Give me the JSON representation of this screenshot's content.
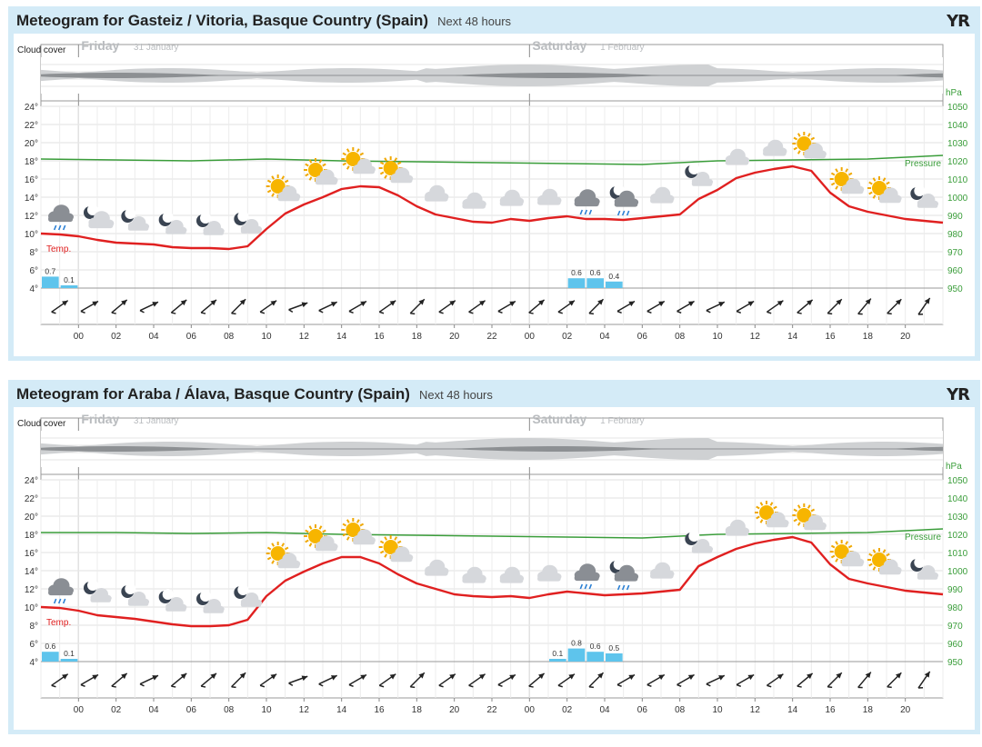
{
  "labels": {
    "cloud_cover": "Cloud cover",
    "temp": "Temp.",
    "pressure": "Pressure",
    "hpa_unit": "hPa",
    "logo": "YR"
  },
  "days": [
    {
      "name": "Friday",
      "date": "31 January",
      "hour_offset": 0
    },
    {
      "name": "Saturday",
      "date": "1 February",
      "hour_offset": 24
    }
  ],
  "panels": [
    {
      "title": "Meteogram for Gasteiz / Vitoria, Basque Country (Spain)",
      "subtitle": "Next 48 hours",
      "chart_data": {
        "type": "line",
        "x_unit": "hour (relative to 00 Friday 31 January)",
        "x_range": [
          -2,
          46
        ],
        "x_tick_labels": [
          "00",
          "02",
          "04",
          "06",
          "08",
          "10",
          "12",
          "14",
          "16",
          "18",
          "20",
          "22",
          "00",
          "02",
          "04",
          "06",
          "08",
          "10",
          "12",
          "14",
          "16",
          "18",
          "20"
        ],
        "y_left": {
          "label": "°",
          "ylim": [
            4,
            24
          ],
          "ticks": [
            4,
            6,
            8,
            10,
            12,
            14,
            16,
            18,
            20,
            22,
            24
          ]
        },
        "y_right": {
          "label": "hPa",
          "ylim": [
            950,
            1050
          ],
          "ticks": [
            950,
            960,
            970,
            980,
            990,
            1000,
            1010,
            1020,
            1030,
            1040,
            1050
          ]
        },
        "grid": true,
        "temperature": {
          "name": "Temp.",
          "color": "#e02020",
          "x": [
            -2,
            -1,
            0,
            1,
            2,
            3,
            4,
            5,
            6,
            7,
            8,
            9,
            10,
            11,
            12,
            13,
            14,
            15,
            16,
            17,
            18,
            19,
            20,
            21,
            22,
            23,
            24,
            25,
            26,
            27,
            28,
            29,
            30,
            31,
            32,
            33,
            34,
            35,
            36,
            37,
            38,
            39,
            40,
            41,
            42,
            43,
            44,
            45,
            46
          ],
          "values": [
            10,
            9.9,
            9.7,
            9.3,
            9.0,
            8.9,
            8.8,
            8.5,
            8.4,
            8.4,
            8.3,
            8.6,
            10.5,
            12.2,
            13.2,
            14.0,
            14.9,
            15.2,
            15.1,
            14.2,
            13.0,
            12.1,
            11.7,
            11.3,
            11.2,
            11.6,
            11.4,
            11.7,
            11.9,
            11.6,
            11.6,
            11.5,
            11.7,
            11.9,
            12.1,
            13.8,
            14.8,
            16.1,
            16.7,
            17.1,
            17.4,
            16.9,
            14.5,
            13.0,
            12.4,
            12.0,
            11.6,
            11.4,
            11.2
          ]
        },
        "pressure": {
          "name": "Pressure",
          "color": "#3a9d3a",
          "x": [
            -2,
            2,
            6,
            10,
            14,
            18,
            22,
            26,
            30,
            34,
            38,
            42,
            46
          ],
          "values": [
            1021,
            1020.5,
            1020,
            1021,
            1020,
            1019.5,
            1019,
            1018.5,
            1018,
            1020,
            1020.5,
            1021,
            1023
          ]
        },
        "precipitation": {
          "unit": "mm",
          "color": "#5ec4ec",
          "bars": [
            {
              "x": -1.5,
              "value": 0.7
            },
            {
              "x": -0.5,
              "value": 0.1
            },
            {
              "x": 26.5,
              "value": 0.6
            },
            {
              "x": 27.5,
              "value": 0.6
            },
            {
              "x": 28.5,
              "value": 0.4
            }
          ]
        },
        "wind_arrows_deg": [
          35,
          30,
          40,
          25,
          40,
          40,
          45,
          35,
          20,
          25,
          30,
          35,
          45,
          35,
          35,
          30,
          40,
          35,
          45,
          30,
          30,
          30,
          25,
          30,
          35,
          40,
          45,
          50,
          45,
          55
        ],
        "weather_symbols": [
          {
            "x": -1,
            "kind": "rain"
          },
          {
            "x": 1,
            "kind": "night-cloud"
          },
          {
            "x": 3,
            "kind": "night-partly"
          },
          {
            "x": 5,
            "kind": "night-partly"
          },
          {
            "x": 7,
            "kind": "night-partly"
          },
          {
            "x": 9,
            "kind": "night-partly"
          },
          {
            "x": 11,
            "kind": "sun-cloud"
          },
          {
            "x": 13,
            "kind": "sun-cloud"
          },
          {
            "x": 15,
            "kind": "sun-cloud"
          },
          {
            "x": 17,
            "kind": "sun-cloud"
          },
          {
            "x": 19,
            "kind": "cloud"
          },
          {
            "x": 21,
            "kind": "cloud"
          },
          {
            "x": 23,
            "kind": "cloud"
          },
          {
            "x": 25,
            "kind": "cloud"
          },
          {
            "x": 27,
            "kind": "rain"
          },
          {
            "x": 29,
            "kind": "night-rain"
          },
          {
            "x": 31,
            "kind": "cloud"
          },
          {
            "x": 33,
            "kind": "night-partly"
          },
          {
            "x": 35,
            "kind": "cloud"
          },
          {
            "x": 37,
            "kind": "cloud"
          },
          {
            "x": 39,
            "kind": "sun-cloud"
          },
          {
            "x": 41,
            "kind": "sun-cloud"
          },
          {
            "x": 43,
            "kind": "sun-cloud"
          },
          {
            "x": 45,
            "kind": "night-partly"
          }
        ]
      }
    },
    {
      "title": "Meteogram for Araba / Álava, Basque Country (Spain)",
      "subtitle": "Next 48 hours",
      "chart_data": {
        "type": "line",
        "x_unit": "hour (relative to 00 Friday 31 January)",
        "x_range": [
          -2,
          46
        ],
        "x_tick_labels": [
          "00",
          "02",
          "04",
          "06",
          "08",
          "10",
          "12",
          "14",
          "16",
          "18",
          "20",
          "22",
          "00",
          "02",
          "04",
          "06",
          "08",
          "10",
          "12",
          "14",
          "16",
          "18",
          "20"
        ],
        "y_left": {
          "label": "°",
          "ylim": [
            4,
            24
          ],
          "ticks": [
            4,
            6,
            8,
            10,
            12,
            14,
            16,
            18,
            20,
            22,
            24
          ]
        },
        "y_right": {
          "label": "hPa",
          "ylim": [
            950,
            1050
          ],
          "ticks": [
            950,
            960,
            970,
            980,
            990,
            1000,
            1010,
            1020,
            1030,
            1040,
            1050
          ]
        },
        "grid": true,
        "temperature": {
          "name": "Temp.",
          "color": "#e02020",
          "x": [
            -2,
            -1,
            0,
            1,
            2,
            3,
            4,
            5,
            6,
            7,
            8,
            9,
            10,
            11,
            12,
            13,
            14,
            15,
            16,
            17,
            18,
            19,
            20,
            21,
            22,
            23,
            24,
            25,
            26,
            27,
            28,
            29,
            30,
            31,
            32,
            33,
            34,
            35,
            36,
            37,
            38,
            39,
            40,
            41,
            42,
            43,
            44,
            45,
            46
          ],
          "values": [
            10,
            9.9,
            9.6,
            9.1,
            8.9,
            8.7,
            8.4,
            8.1,
            7.9,
            7.9,
            8.0,
            8.6,
            11.2,
            12.9,
            13.9,
            14.8,
            15.5,
            15.5,
            14.8,
            13.6,
            12.6,
            12.0,
            11.4,
            11.2,
            11.1,
            11.2,
            11.0,
            11.4,
            11.7,
            11.5,
            11.3,
            11.4,
            11.5,
            11.7,
            11.9,
            14.5,
            15.5,
            16.4,
            17.0,
            17.4,
            17.7,
            17.1,
            14.7,
            13.1,
            12.6,
            12.2,
            11.8,
            11.6,
            11.4
          ]
        },
        "pressure": {
          "name": "Pressure",
          "color": "#3a9d3a",
          "x": [
            -2,
            2,
            6,
            10,
            14,
            18,
            22,
            26,
            30,
            34,
            38,
            42,
            46
          ],
          "values": [
            1021,
            1021,
            1020.5,
            1021,
            1020,
            1019.5,
            1019,
            1018.5,
            1018,
            1020,
            1020.5,
            1021,
            1023
          ]
        },
        "precipitation": {
          "unit": "mm",
          "color": "#5ec4ec",
          "bars": [
            {
              "x": -1.5,
              "value": 0.6
            },
            {
              "x": -0.5,
              "value": 0.1
            },
            {
              "x": 25.5,
              "value": 0.1
            },
            {
              "x": 26.5,
              "value": 0.8
            },
            {
              "x": 27.5,
              "value": 0.6
            },
            {
              "x": 28.5,
              "value": 0.5
            }
          ]
        },
        "wind_arrows_deg": [
          35,
          30,
          40,
          25,
          40,
          40,
          45,
          35,
          20,
          25,
          30,
          35,
          45,
          35,
          35,
          30,
          40,
          35,
          45,
          30,
          30,
          30,
          25,
          30,
          35,
          40,
          45,
          50,
          45,
          55
        ],
        "weather_symbols": [
          {
            "x": -1,
            "kind": "rain"
          },
          {
            "x": 1,
            "kind": "night-partly"
          },
          {
            "x": 3,
            "kind": "night-partly"
          },
          {
            "x": 5,
            "kind": "night-partly"
          },
          {
            "x": 7,
            "kind": "night-partly"
          },
          {
            "x": 9,
            "kind": "night-partly"
          },
          {
            "x": 11,
            "kind": "sun-cloud"
          },
          {
            "x": 13,
            "kind": "sun-cloud"
          },
          {
            "x": 15,
            "kind": "sun-cloud"
          },
          {
            "x": 17,
            "kind": "sun-cloud"
          },
          {
            "x": 19,
            "kind": "cloud"
          },
          {
            "x": 21,
            "kind": "cloud"
          },
          {
            "x": 23,
            "kind": "cloud"
          },
          {
            "x": 25,
            "kind": "cloud"
          },
          {
            "x": 27,
            "kind": "rain"
          },
          {
            "x": 29,
            "kind": "night-rain"
          },
          {
            "x": 31,
            "kind": "cloud"
          },
          {
            "x": 33,
            "kind": "night-partly"
          },
          {
            "x": 35,
            "kind": "cloud"
          },
          {
            "x": 37,
            "kind": "sun-cloud"
          },
          {
            "x": 39,
            "kind": "sun-cloud"
          },
          {
            "x": 41,
            "kind": "sun-cloud"
          },
          {
            "x": 43,
            "kind": "sun-cloud"
          },
          {
            "x": 45,
            "kind": "night-partly"
          }
        ]
      }
    }
  ]
}
